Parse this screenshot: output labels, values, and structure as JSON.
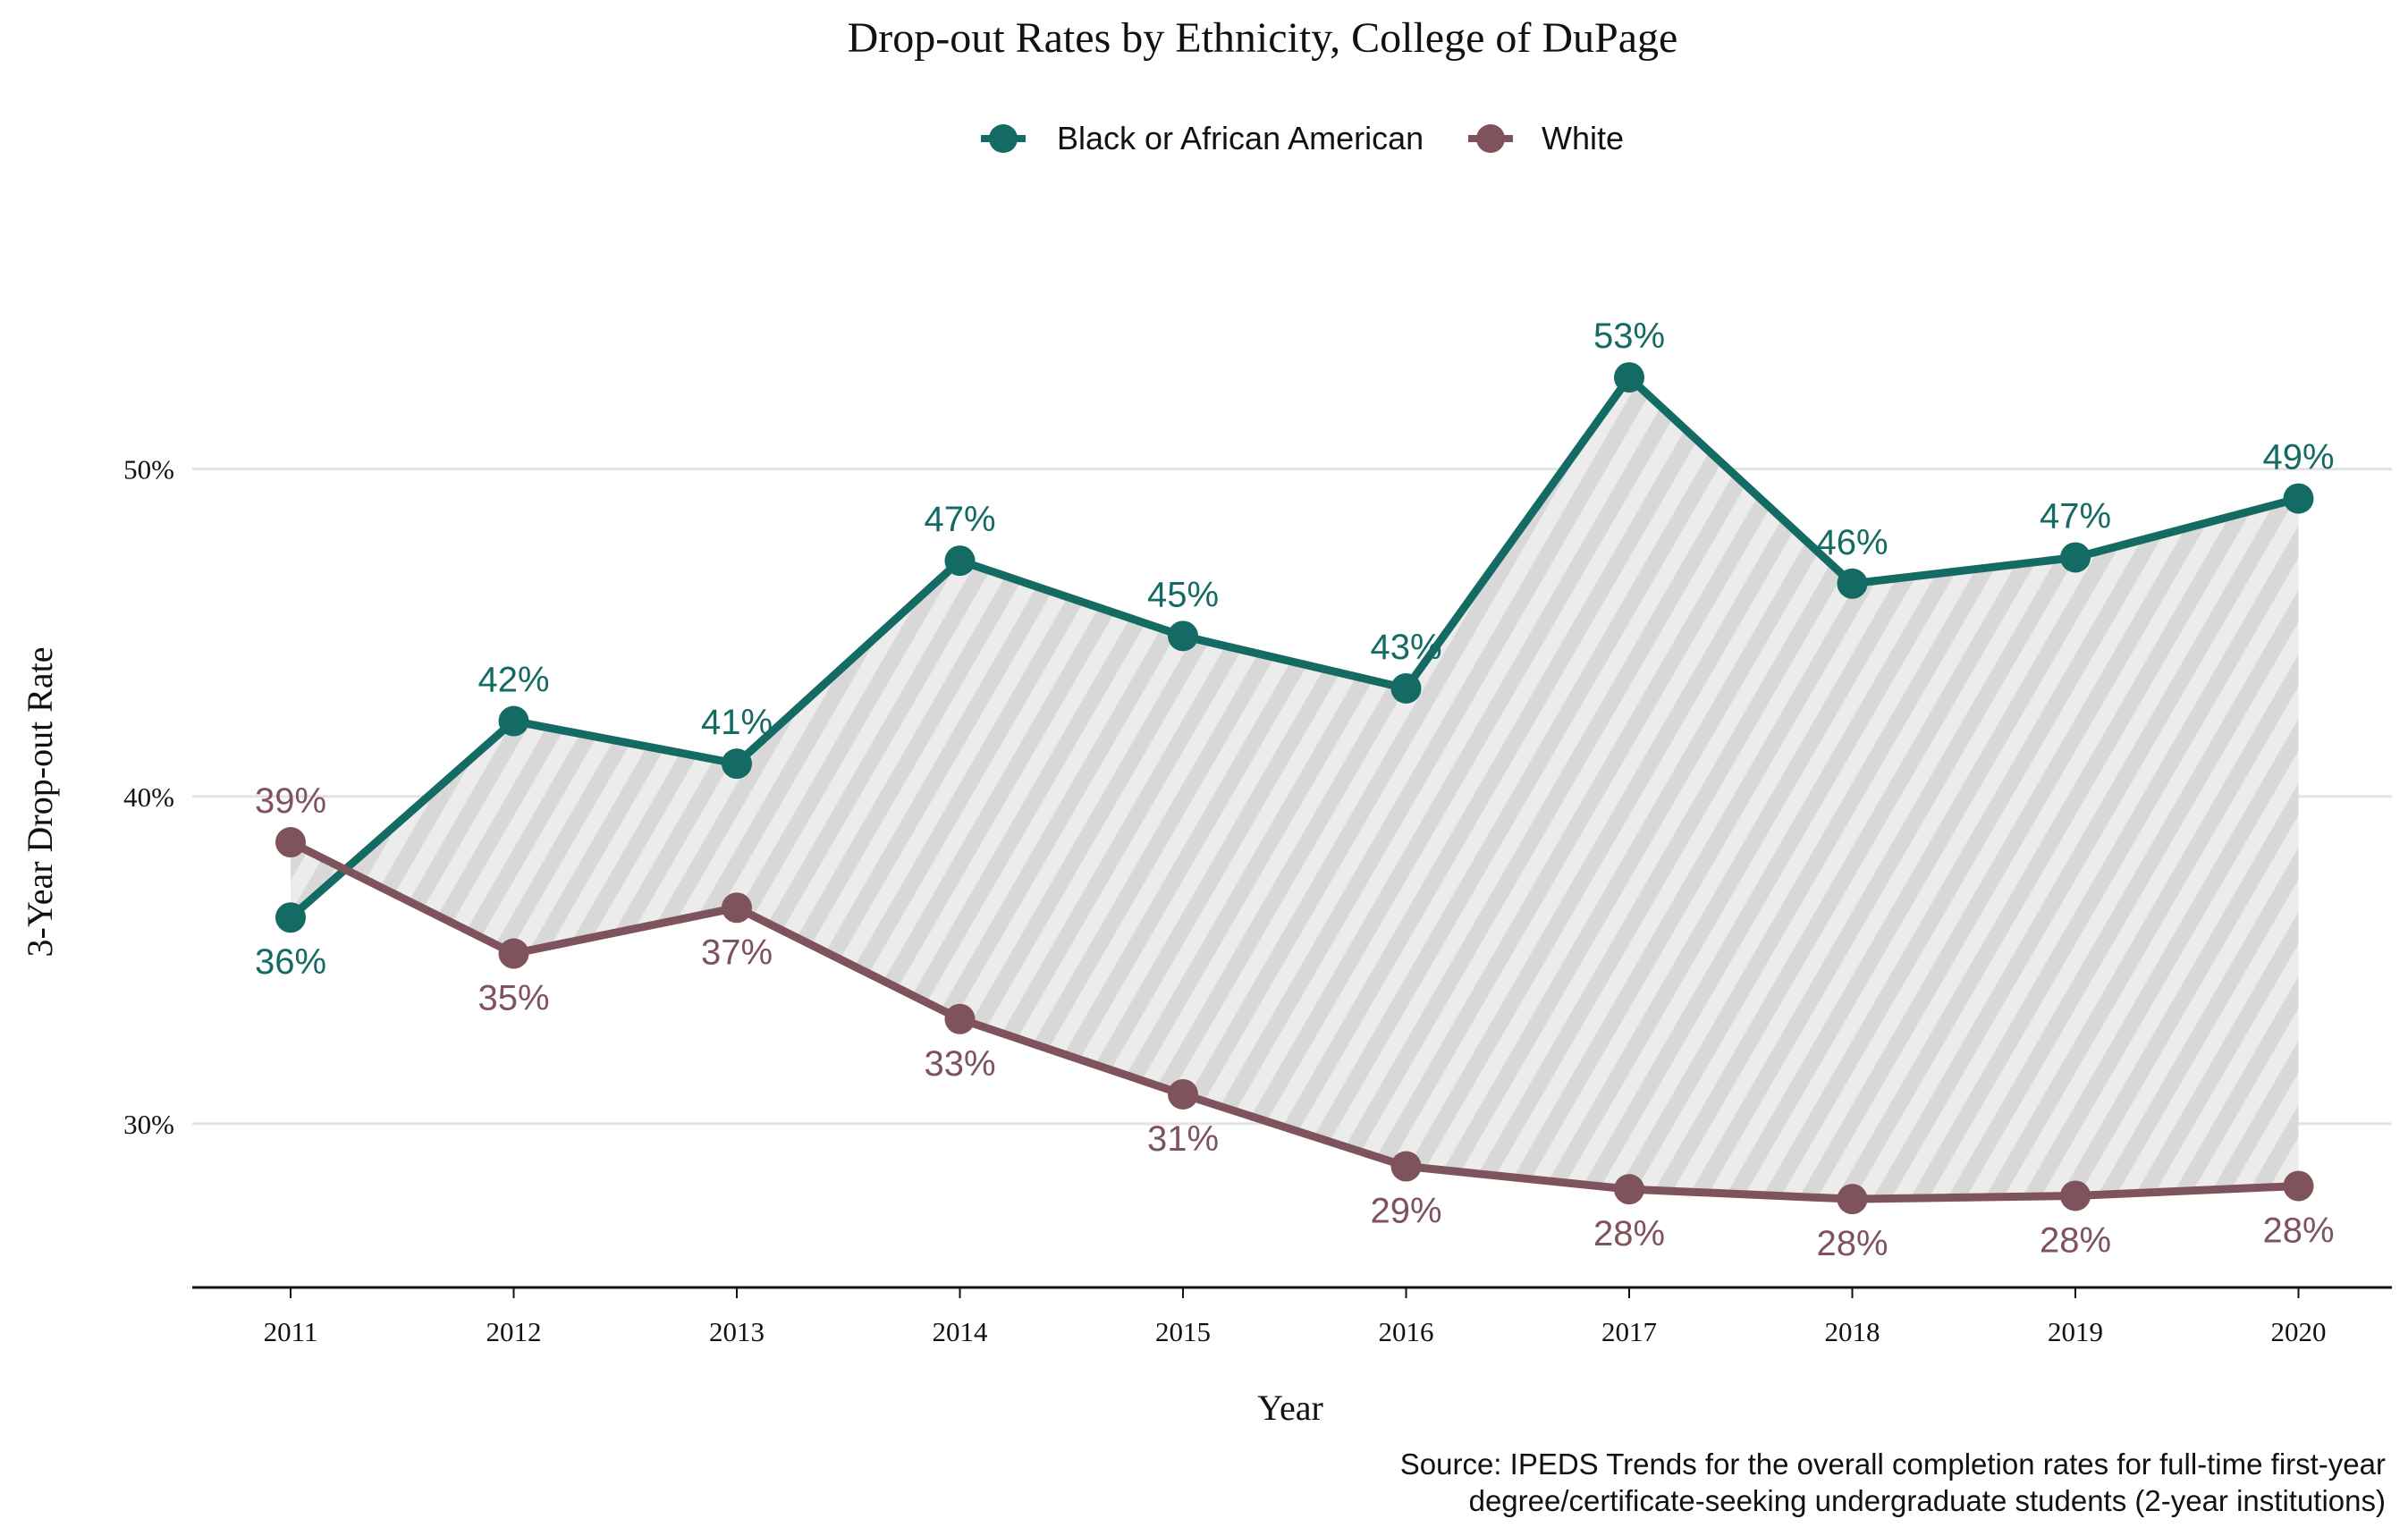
{
  "chart_data": {
    "type": "line",
    "title": "Drop-out Rates by Ethnicity, College of DuPage",
    "xlabel": "Year",
    "ylabel": "3-Year Drop-out Rate",
    "x": [
      "2011",
      "2012",
      "2013",
      "2014",
      "2015",
      "2016",
      "2017",
      "2018",
      "2019",
      "2020"
    ],
    "y_ticks": [
      30,
      40,
      50
    ],
    "y_tick_labels": [
      "30%",
      "40%",
      "50%"
    ],
    "ylim": [
      25,
      57.5
    ],
    "grid": "horizontal",
    "legend_position": "top-center",
    "fill_between": "hatched gray band between the two series",
    "series": [
      {
        "name": "Black or African American",
        "color": "#136b64",
        "values": [
          36.3,
          42.3,
          41.0,
          47.2,
          44.9,
          43.3,
          52.8,
          46.5,
          47.3,
          49.1
        ],
        "labels": [
          "36%",
          "42%",
          "41%",
          "47%",
          "45%",
          "43%",
          "53%",
          "46%",
          "47%",
          "49%"
        ]
      },
      {
        "name": "White",
        "color": "#7f535c",
        "values": [
          38.6,
          35.2,
          36.6,
          33.2,
          30.9,
          28.7,
          28.0,
          27.7,
          27.8,
          28.1
        ],
        "labels": [
          "39%",
          "35%",
          "37%",
          "33%",
          "31%",
          "29%",
          "28%",
          "28%",
          "28%",
          "28%"
        ]
      }
    ],
    "caption_lines": [
      "Source: IPEDS Trends for the overall completion rates for full-time first-year",
      "degree/certificate-seeking undergraduate students (2-year institutions)"
    ]
  }
}
